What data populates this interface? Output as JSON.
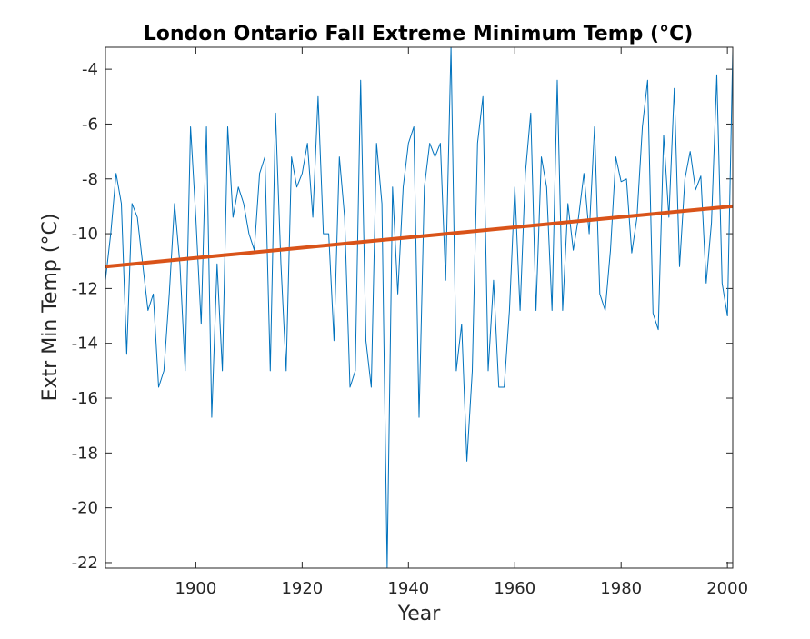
{
  "chart_data": {
    "type": "line",
    "title": "London Ontario Fall Extreme Minimum Temp (°C)",
    "xlabel": "Year",
    "ylabel": "Extr Min Temp (°C)",
    "xlim": [
      1883,
      2001
    ],
    "ylim": [
      -22.2,
      -3.2
    ],
    "x_ticks": [
      1900,
      1920,
      1940,
      1960,
      1980,
      2000
    ],
    "y_ticks": [
      -22,
      -20,
      -18,
      -16,
      -14,
      -12,
      -10,
      -8,
      -6,
      -4
    ],
    "grid": false,
    "legend": "none",
    "series": [
      {
        "style": "thin-line",
        "color": "#0072BD",
        "x": [
          1883,
          1884,
          1885,
          1886,
          1887,
          1888,
          1889,
          1890,
          1891,
          1892,
          1893,
          1894,
          1895,
          1896,
          1897,
          1898,
          1899,
          1900,
          1901,
          1902,
          1903,
          1904,
          1905,
          1906,
          1907,
          1908,
          1909,
          1910,
          1911,
          1912,
          1913,
          1914,
          1915,
          1916,
          1917,
          1918,
          1919,
          1920,
          1921,
          1922,
          1923,
          1924,
          1925,
          1926,
          1927,
          1928,
          1929,
          1930,
          1931,
          1932,
          1933,
          1934,
          1935,
          1936,
          1937,
          1938,
          1939,
          1940,
          1941,
          1942,
          1943,
          1944,
          1945,
          1946,
          1947,
          1948,
          1949,
          1950,
          1951,
          1952,
          1953,
          1954,
          1955,
          1956,
          1957,
          1958,
          1959,
          1960,
          1961,
          1962,
          1963,
          1964,
          1965,
          1966,
          1967,
          1968,
          1969,
          1970,
          1971,
          1972,
          1973,
          1974,
          1975,
          1976,
          1977,
          1978,
          1979,
          1980,
          1981,
          1982,
          1983,
          1984,
          1985,
          1986,
          1987,
          1988,
          1989,
          1990,
          1991,
          1992,
          1993,
          1994,
          1995,
          1996,
          1997,
          1998,
          1999,
          2000,
          2001
        ],
        "values": [
          -11.7,
          -10.0,
          -7.8,
          -8.9,
          -14.4,
          -8.9,
          -9.4,
          -11.1,
          -12.8,
          -12.2,
          -15.6,
          -15.0,
          -12.2,
          -8.9,
          -11.1,
          -15.0,
          -6.1,
          -9.4,
          -13.3,
          -6.1,
          -16.7,
          -11.1,
          -15.0,
          -6.1,
          -9.4,
          -8.3,
          -8.9,
          -10.0,
          -10.6,
          -7.8,
          -7.2,
          -15.0,
          -5.6,
          -11.1,
          -15.0,
          -7.2,
          -8.3,
          -7.8,
          -6.7,
          -9.4,
          -5.0,
          -10.0,
          -10.0,
          -13.9,
          -7.2,
          -9.4,
          -15.6,
          -15.0,
          -4.4,
          -13.9,
          -15.6,
          -6.7,
          -8.9,
          -22.2,
          -8.3,
          -12.2,
          -8.3,
          -6.7,
          -6.1,
          -16.7,
          -8.3,
          -6.7,
          -7.2,
          -6.7,
          -11.7,
          -3.2,
          -15.0,
          -13.3,
          -18.3,
          -15.0,
          -6.7,
          -5.0,
          -15.0,
          -11.7,
          -15.6,
          -15.6,
          -12.8,
          -8.3,
          -12.8,
          -7.8,
          -5.6,
          -12.8,
          -7.2,
          -8.3,
          -12.8,
          -4.4,
          -12.8,
          -8.9,
          -10.6,
          -9.4,
          -7.8,
          -10.0,
          -6.1,
          -12.2,
          -12.8,
          -10.6,
          -7.2,
          -8.1,
          -8.0,
          -10.7,
          -9.4,
          -6.1,
          -4.4,
          -12.9,
          -13.5,
          -6.4,
          -9.4,
          -4.7,
          -11.2,
          -8.0,
          -7.0,
          -8.4,
          -7.9,
          -11.8,
          -9.6,
          -4.2,
          -11.8,
          -13.0,
          -3.3
        ]
      },
      {
        "style": "trend-line",
        "color": "#D95319",
        "x": [
          1883,
          2001
        ],
        "values": [
          -11.2,
          -9.0
        ]
      }
    ]
  }
}
